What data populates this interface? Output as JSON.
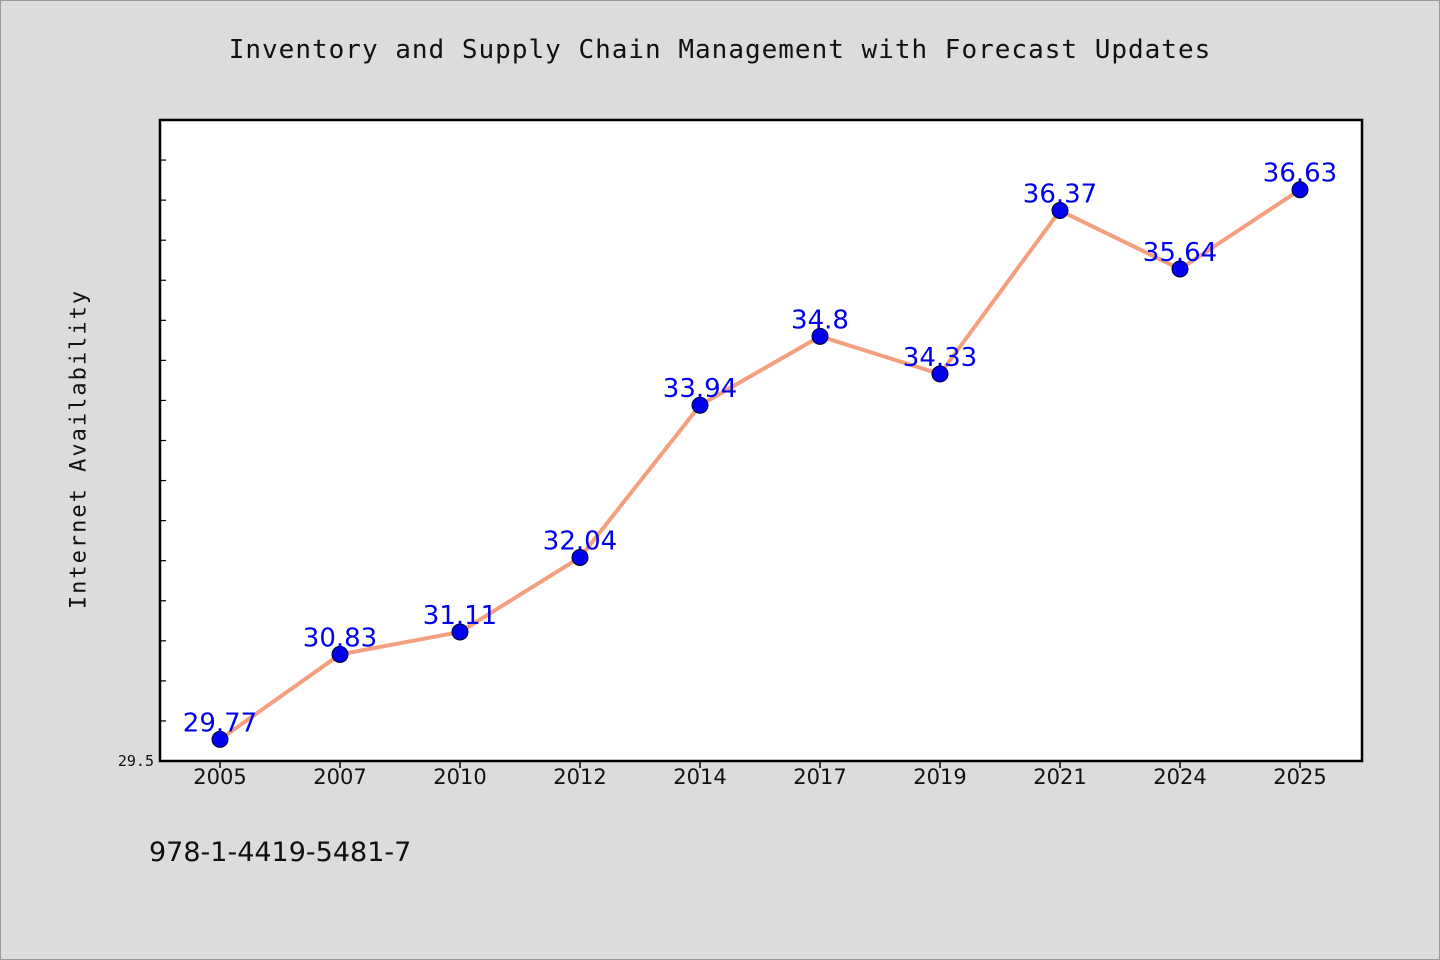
{
  "chart_data": {
    "type": "line",
    "title": "Inventory and Supply Chain Management with Forecast Updates",
    "xlabel": "",
    "ylabel": "Internet Availability",
    "categories": [
      "2005",
      "2007",
      "2010",
      "2012",
      "2014",
      "2017",
      "2019",
      "2021",
      "2024",
      "2025"
    ],
    "series": [
      {
        "values": [
          29.77,
          30.83,
          31.11,
          32.04,
          33.94,
          34.8,
          34.33,
          36.37,
          35.64,
          36.63
        ]
      }
    ],
    "data_labels": [
      "29.77",
      "30.83",
      "31.11",
      "32.04",
      "33.94",
      "34.8",
      "34.33",
      "36.37",
      "35.64",
      "36.63"
    ],
    "ylim": [
      29.5,
      37.5
    ],
    "y_tick_labels": [
      "29.5"
    ],
    "minor_tick_step": 0.5,
    "grid": false,
    "line_color": "#f4a07e",
    "marker_color": "#0000ee",
    "label_color": "#0000ee"
  },
  "footer": {
    "code": "978-1-4419-5481-7"
  }
}
